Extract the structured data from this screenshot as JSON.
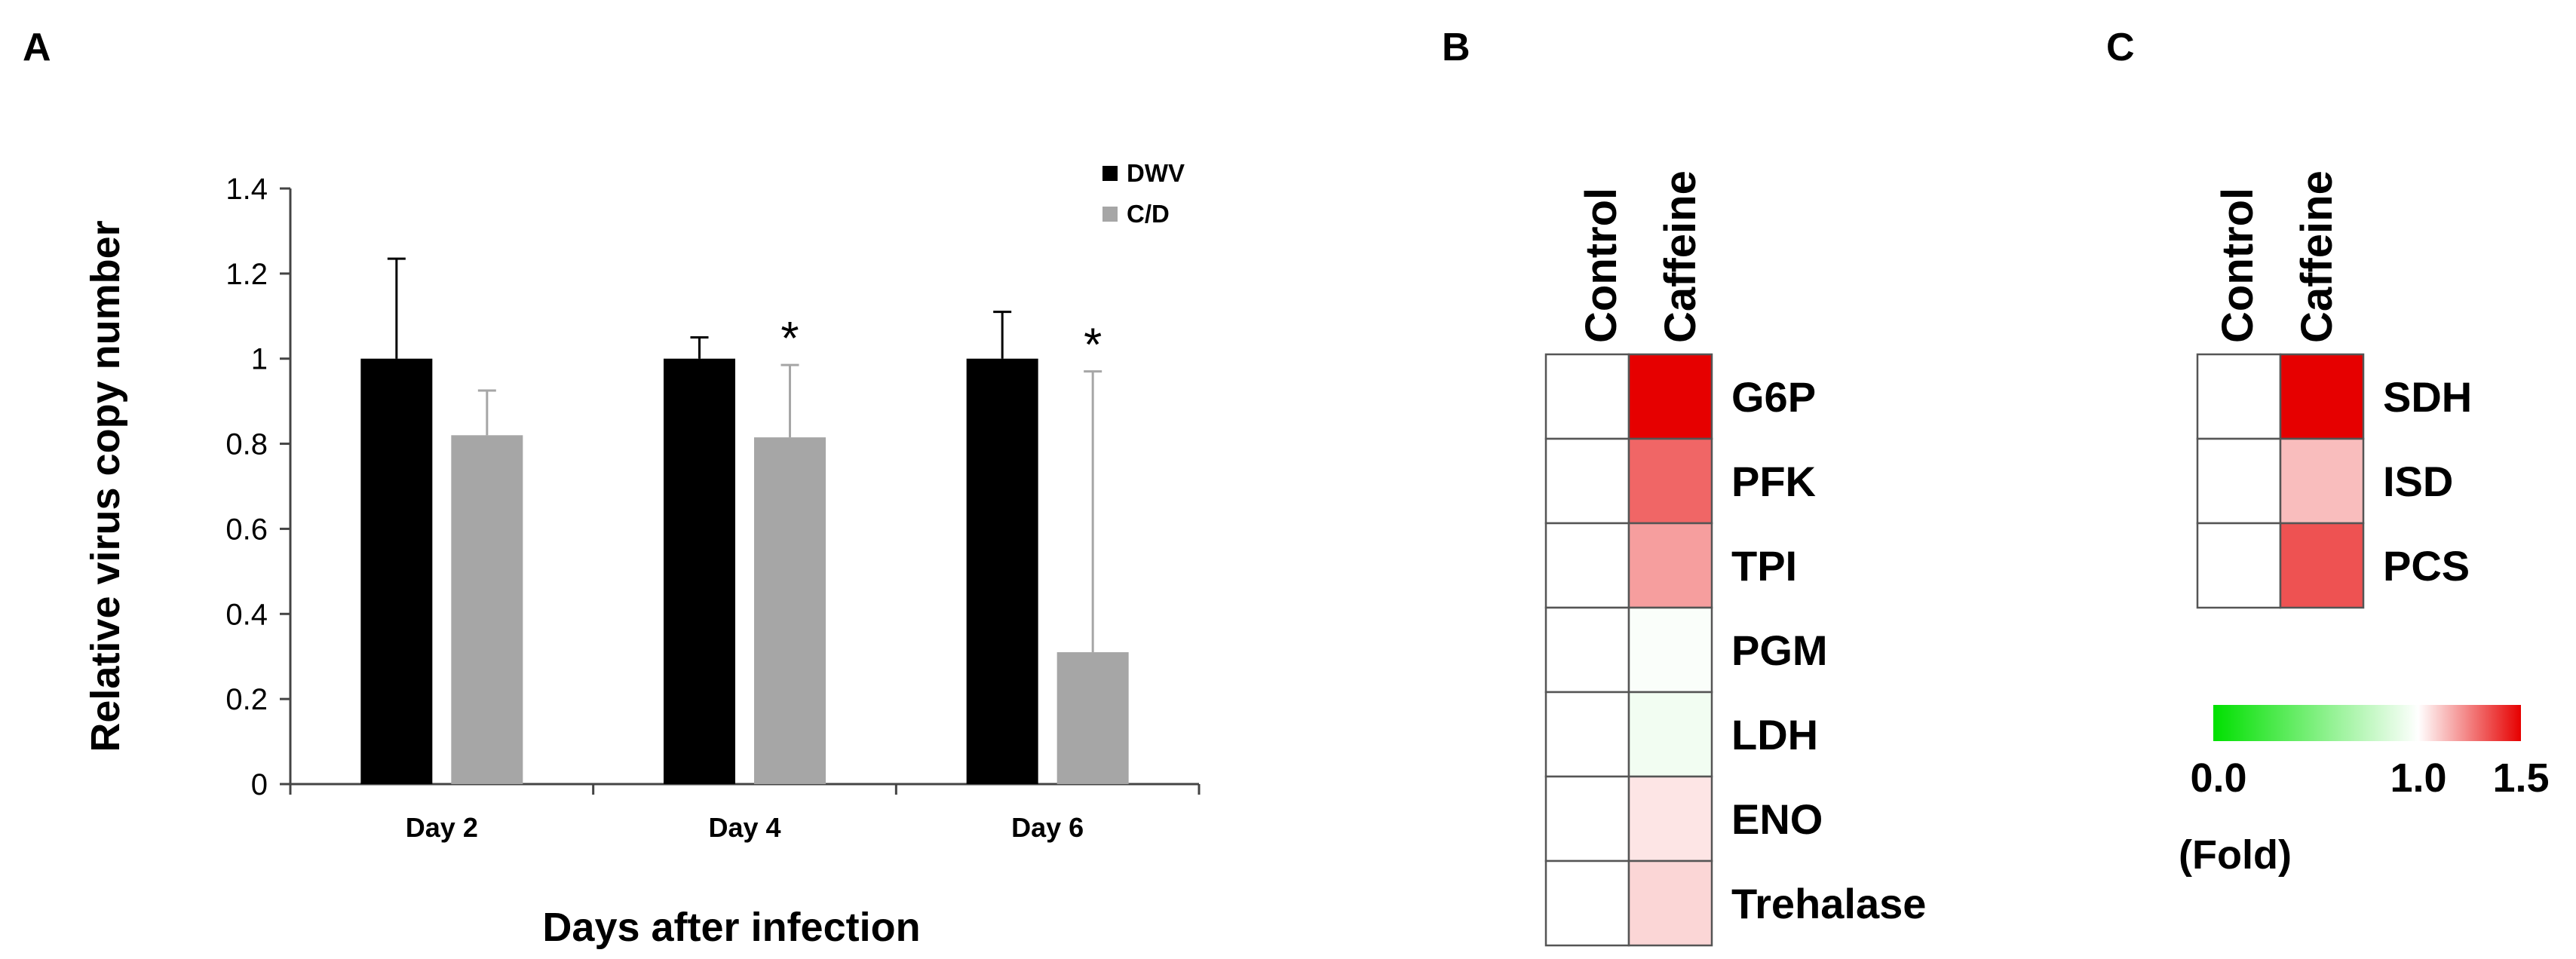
{
  "panels": {
    "a_label": "A",
    "b_label": "B",
    "c_label": "C"
  },
  "chart_data": [
    {
      "type": "bar",
      "panel": "A",
      "title": "",
      "xlabel": "Days after infection",
      "ylabel": "Relative virus copy number",
      "categories": [
        "Day 2",
        "Day 4",
        "Day 6"
      ],
      "series": [
        {
          "name": "DWV",
          "color": "#000000",
          "values": [
            1.0,
            1.0,
            1.0
          ],
          "errors": [
            0.235,
            0.05,
            0.11
          ]
        },
        {
          "name": "C/D",
          "color": "#a6a6a6",
          "values": [
            0.82,
            0.815,
            0.31
          ],
          "errors": [
            0.105,
            0.17,
            0.66
          ]
        }
      ],
      "significance": [
        "",
        "*",
        "*"
      ],
      "yticks": [
        "0",
        "0.2",
        "0.4",
        "0.6",
        "0.8",
        "1",
        "1.2",
        "1.4"
      ],
      "ylim": [
        0,
        1.4
      ],
      "legend": "top-right"
    },
    {
      "type": "heatmap",
      "panel": "B",
      "columns": [
        "Control",
        "Caffeine"
      ],
      "rows": [
        "G6P",
        "PFK",
        "TPI",
        "PGM",
        "LDH",
        "ENO",
        "Trehalase"
      ],
      "values": [
        [
          1.0,
          1.5
        ],
        [
          1.0,
          1.3
        ],
        [
          1.0,
          1.19
        ],
        [
          1.0,
          0.98
        ],
        [
          1.0,
          0.95
        ],
        [
          1.0,
          1.05
        ],
        [
          1.0,
          1.08
        ]
      ]
    },
    {
      "type": "heatmap",
      "panel": "C",
      "columns": [
        "Control",
        "Caffeine"
      ],
      "rows": [
        "SDH",
        "ISD",
        "PCS"
      ],
      "values": [
        [
          1.0,
          1.5
        ],
        [
          1.0,
          1.13
        ],
        [
          1.0,
          1.34
        ]
      ],
      "colorbar": {
        "min": 0.0,
        "mid": 1.0,
        "max": 1.5,
        "min_label": "0.0",
        "mid_label": "1.0",
        "max_label": "1.5",
        "title": "(Fold)",
        "low_color": "#00e000",
        "mid_color": "#ffffff",
        "high_color": "#e60000"
      }
    }
  ]
}
